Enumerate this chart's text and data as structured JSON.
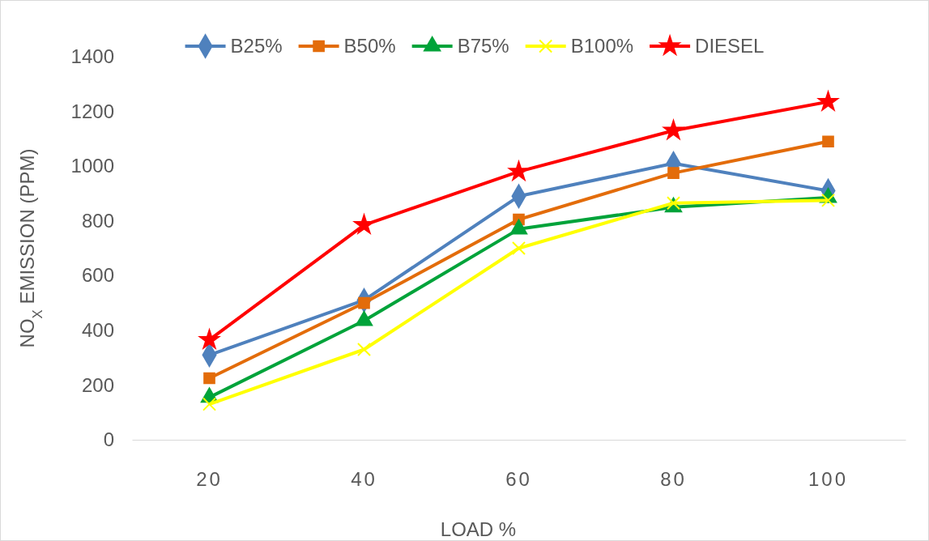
{
  "chart_data": {
    "type": "line",
    "xlabel": "LOAD %",
    "ylabel": "NO$_{X}$ EMISSION (PPM)",
    "categories": [
      "20",
      "40",
      "60",
      "80",
      "100"
    ],
    "ylim": [
      0,
      1400
    ],
    "yticks": [
      0,
      200,
      400,
      600,
      800,
      1000,
      1200,
      1400
    ],
    "grid": false,
    "legend": "top",
    "series": [
      {
        "name": "B25%",
        "color": "#4f81bd",
        "marker": "diamond",
        "values": [
          310,
          510,
          890,
          1010,
          910
        ]
      },
      {
        "name": "B50%",
        "color": "#e36c0a",
        "marker": "square",
        "values": [
          225,
          500,
          805,
          975,
          1090
        ]
      },
      {
        "name": "B75%",
        "color": "#00a33a",
        "marker": "triangle",
        "values": [
          155,
          435,
          770,
          850,
          885
        ]
      },
      {
        "name": "B100%",
        "color": "#ffff00",
        "marker": "cross",
        "values": [
          130,
          330,
          700,
          865,
          875
        ]
      },
      {
        "name": "DIESEL",
        "color": "#ff0000",
        "marker": "star",
        "values": [
          365,
          785,
          980,
          1130,
          1235
        ]
      }
    ]
  }
}
